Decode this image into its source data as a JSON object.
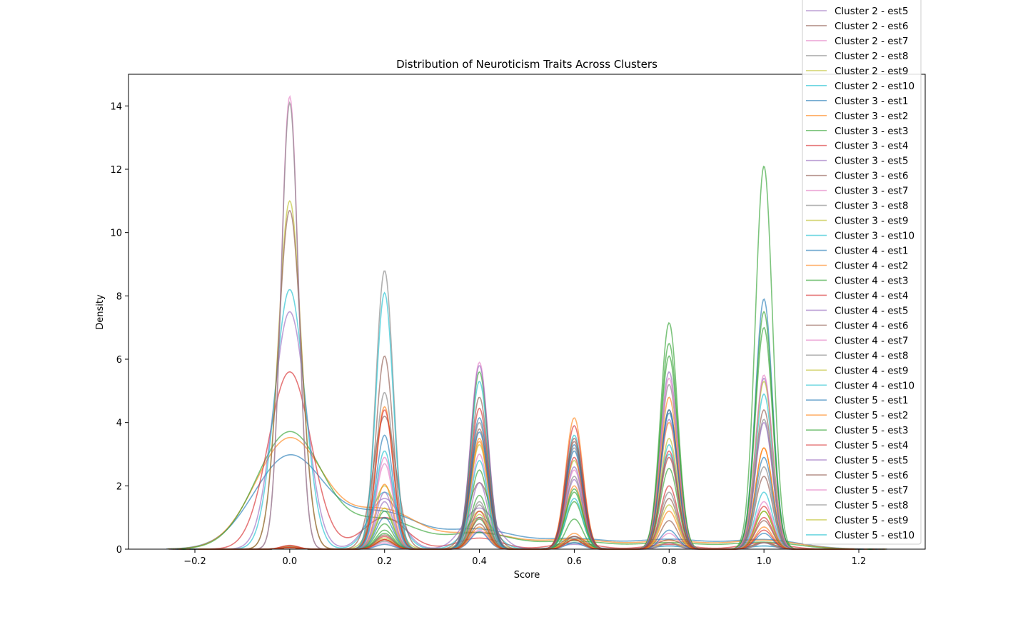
{
  "chart_data": {
    "type": "line",
    "title": "Distribution of Neuroticism Traits Across Clusters",
    "xlabel": "Score",
    "ylabel": "Density",
    "xlim": [
      -0.34,
      1.34
    ],
    "ylim": [
      0,
      15
    ],
    "xticks": [
      "−0.2",
      "0.0",
      "0.2",
      "0.4",
      "0.6",
      "0.8",
      "1.0",
      "1.2"
    ],
    "yticks": [
      "0",
      "2",
      "4",
      "6",
      "8",
      "10",
      "12",
      "14"
    ],
    "legend_position": "upper-right",
    "legend": [
      {
        "label": "Cluster 2 - est5",
        "color": "#9467bd"
      },
      {
        "label": "Cluster 2 - est6",
        "color": "#8c564b"
      },
      {
        "label": "Cluster 2 - est7",
        "color": "#e377c2"
      },
      {
        "label": "Cluster 2 - est8",
        "color": "#7f7f7f"
      },
      {
        "label": "Cluster 2 - est9",
        "color": "#bcbd22"
      },
      {
        "label": "Cluster 2 - est10",
        "color": "#17becf"
      },
      {
        "label": "Cluster 3 - est1",
        "color": "#1f77b4"
      },
      {
        "label": "Cluster 3 - est2",
        "color": "#ff7f0e"
      },
      {
        "label": "Cluster 3 - est3",
        "color": "#2ca02c"
      },
      {
        "label": "Cluster 3 - est4",
        "color": "#d62728"
      },
      {
        "label": "Cluster 3 - est5",
        "color": "#9467bd"
      },
      {
        "label": "Cluster 3 - est6",
        "color": "#8c564b"
      },
      {
        "label": "Cluster 3 - est7",
        "color": "#e377c2"
      },
      {
        "label": "Cluster 3 - est8",
        "color": "#7f7f7f"
      },
      {
        "label": "Cluster 3 - est9",
        "color": "#bcbd22"
      },
      {
        "label": "Cluster 3 - est10",
        "color": "#17becf"
      },
      {
        "label": "Cluster 4 - est1",
        "color": "#1f77b4"
      },
      {
        "label": "Cluster 4 - est2",
        "color": "#ff7f0e"
      },
      {
        "label": "Cluster 4 - est3",
        "color": "#2ca02c"
      },
      {
        "label": "Cluster 4 - est4",
        "color": "#d62728"
      },
      {
        "label": "Cluster 4 - est5",
        "color": "#9467bd"
      },
      {
        "label": "Cluster 4 - est6",
        "color": "#8c564b"
      },
      {
        "label": "Cluster 4 - est7",
        "color": "#e377c2"
      },
      {
        "label": "Cluster 4 - est8",
        "color": "#7f7f7f"
      },
      {
        "label": "Cluster 4 - est9",
        "color": "#bcbd22"
      },
      {
        "label": "Cluster 4 - est10",
        "color": "#17becf"
      },
      {
        "label": "Cluster 5 - est1",
        "color": "#1f77b4"
      },
      {
        "label": "Cluster 5 - est2",
        "color": "#ff7f0e"
      },
      {
        "label": "Cluster 5 - est3",
        "color": "#2ca02c"
      },
      {
        "label": "Cluster 5 - est4",
        "color": "#d62728"
      },
      {
        "label": "Cluster 5 - est5",
        "color": "#9467bd"
      },
      {
        "label": "Cluster 5 - est6",
        "color": "#8c564b"
      },
      {
        "label": "Cluster 5 - est7",
        "color": "#e377c2"
      },
      {
        "label": "Cluster 5 - est8",
        "color": "#7f7f7f"
      },
      {
        "label": "Cluster 5 - est9",
        "color": "#bcbd22"
      },
      {
        "label": "Cluster 5 - est10",
        "color": "#17becf"
      }
    ],
    "series": [
      {
        "color": "#1f77b4",
        "bw": 0.075,
        "peaks": [
          [
            0.0,
            2.95
          ],
          [
            0.2,
            1.1
          ],
          [
            0.4,
            0.6
          ],
          [
            0.6,
            0.32
          ],
          [
            0.8,
            0.3
          ],
          [
            1.0,
            0.3
          ]
        ]
      },
      {
        "color": "#ff7f0e",
        "bw": 0.072,
        "peaks": [
          [
            0.0,
            3.5
          ],
          [
            0.2,
            1.2
          ],
          [
            0.4,
            0.5
          ],
          [
            0.6,
            0.3
          ],
          [
            0.8,
            0.25
          ],
          [
            1.0,
            0.28
          ]
        ]
      },
      {
        "color": "#2ca02c",
        "bw": 0.07,
        "peaks": [
          [
            0.0,
            3.7
          ],
          [
            0.2,
            0.9
          ],
          [
            0.4,
            0.5
          ],
          [
            0.6,
            0.25
          ],
          [
            0.8,
            0.2
          ],
          [
            1.0,
            0.22
          ]
        ]
      },
      {
        "color": "#d62728",
        "bw": 0.045,
        "peaks": [
          [
            0.0,
            5.6
          ],
          [
            0.2,
            1.0
          ],
          [
            0.4,
            0.35
          ],
          [
            0.6,
            0.2
          ],
          [
            0.8,
            0.15
          ],
          [
            1.0,
            0.2
          ]
        ]
      },
      {
        "color": "#9467bd",
        "bw": 0.034,
        "peaks": [
          [
            0.0,
            7.5
          ],
          [
            0.2,
            1.6
          ],
          [
            0.4,
            1.3
          ],
          [
            0.6,
            0.15
          ],
          [
            0.8,
            0.1
          ],
          [
            1.0,
            0.1
          ]
        ]
      },
      {
        "color": "#17becf",
        "bw": 0.031,
        "peaks": [
          [
            0.0,
            8.2
          ],
          [
            0.2,
            1.8
          ],
          [
            0.4,
            1.0
          ],
          [
            0.6,
            0.2
          ],
          [
            0.8,
            0.1
          ],
          [
            1.0,
            0.1
          ]
        ]
      },
      {
        "color": "#bcbd22",
        "bw": 0.024,
        "peaks": [
          [
            0.0,
            11.0
          ],
          [
            0.2,
            2.0
          ],
          [
            0.4,
            1.2
          ],
          [
            0.6,
            0.3
          ],
          [
            0.8,
            0.2
          ],
          [
            1.0,
            0.2
          ]
        ]
      },
      {
        "color": "#8c564b",
        "bw": 0.024,
        "peaks": [
          [
            0.0,
            10.7
          ],
          [
            0.2,
            4.2
          ],
          [
            0.4,
            2.1
          ],
          [
            0.6,
            0.4
          ],
          [
            0.8,
            0.3
          ],
          [
            1.0,
            0.2
          ]
        ]
      },
      {
        "color": "#e377c2",
        "bw": 0.018,
        "peaks": [
          [
            0.0,
            14.3
          ],
          [
            0.2,
            2.9
          ],
          [
            0.4,
            5.9
          ],
          [
            0.6,
            0.3
          ],
          [
            0.8,
            0.2
          ],
          [
            1.0,
            0.2
          ]
        ]
      },
      {
        "color": "#7f7f7f",
        "bw": 0.018,
        "peaks": [
          [
            0.0,
            14.1
          ],
          [
            0.2,
            8.8
          ],
          [
            0.4,
            1.5
          ],
          [
            0.6,
            0.3
          ],
          [
            0.8,
            0.2
          ],
          [
            1.0,
            0.2
          ]
        ]
      },
      {
        "color": "#17becf",
        "bw": 0.018,
        "peaks": [
          [
            0.0,
            0.1
          ],
          [
            0.2,
            8.1
          ],
          [
            0.4,
            5.3
          ],
          [
            0.6,
            3.6
          ],
          [
            0.8,
            3.3
          ],
          [
            1.0,
            4.9
          ]
        ]
      },
      {
        "color": "#8c564b",
        "bw": 0.018,
        "peaks": [
          [
            0.0,
            0.08
          ],
          [
            0.2,
            6.1
          ],
          [
            0.4,
            4.8
          ],
          [
            0.6,
            3.5
          ],
          [
            0.8,
            4.4
          ],
          [
            1.0,
            4.4
          ]
        ]
      },
      {
        "color": "#7f7f7f",
        "bw": 0.018,
        "peaks": [
          [
            0.0,
            0.06
          ],
          [
            0.2,
            4.95
          ],
          [
            0.4,
            4.0
          ],
          [
            0.6,
            3.2
          ],
          [
            0.8,
            5.2
          ],
          [
            1.0,
            4.1
          ]
        ]
      },
      {
        "color": "#ff7f0e",
        "bw": 0.018,
        "peaks": [
          [
            0.0,
            0.1
          ],
          [
            0.2,
            4.5
          ],
          [
            0.4,
            3.5
          ],
          [
            0.6,
            4.15
          ],
          [
            0.8,
            4.0
          ],
          [
            1.0,
            3.2
          ]
        ]
      },
      {
        "color": "#d62728",
        "bw": 0.018,
        "peaks": [
          [
            0.0,
            0.12
          ],
          [
            0.2,
            4.4
          ],
          [
            0.4,
            4.45
          ],
          [
            0.6,
            3.9
          ],
          [
            0.8,
            2.9
          ],
          [
            1.0,
            1.0
          ]
        ]
      },
      {
        "color": "#1f77b4",
        "bw": 0.018,
        "peaks": [
          [
            0.0,
            0.05
          ],
          [
            0.2,
            3.6
          ],
          [
            0.4,
            4.15
          ],
          [
            0.6,
            3.3
          ],
          [
            0.8,
            4.4
          ],
          [
            1.0,
            7.9
          ]
        ]
      },
      {
        "color": "#2ca02c",
        "bw": 0.018,
        "peaks": [
          [
            0.0,
            0.05
          ],
          [
            0.2,
            1.2
          ],
          [
            0.4,
            2.5
          ],
          [
            0.6,
            0.95
          ],
          [
            0.8,
            7.15
          ],
          [
            1.0,
            12.1
          ]
        ]
      },
      {
        "color": "#2ca02c",
        "bw": 0.018,
        "peaks": [
          [
            0.0,
            0.05
          ],
          [
            0.2,
            0.8
          ],
          [
            0.4,
            1.7
          ],
          [
            0.6,
            1.5
          ],
          [
            0.8,
            6.5
          ],
          [
            1.0,
            7.5
          ]
        ]
      },
      {
        "color": "#2ca02c",
        "bw": 0.018,
        "peaks": [
          [
            0.0,
            0.05
          ],
          [
            0.2,
            0.5
          ],
          [
            0.4,
            5.6
          ],
          [
            0.6,
            1.8
          ],
          [
            0.8,
            6.1
          ],
          [
            1.0,
            7.0
          ]
        ]
      },
      {
        "color": "#9467bd",
        "bw": 0.018,
        "peaks": [
          [
            0.0,
            0.05
          ],
          [
            0.2,
            1.5
          ],
          [
            0.4,
            5.8
          ],
          [
            0.6,
            2.2
          ],
          [
            0.8,
            5.6
          ],
          [
            1.0,
            5.4
          ]
        ]
      },
      {
        "color": "#bcbd22",
        "bw": 0.018,
        "peaks": [
          [
            0.0,
            0.05
          ],
          [
            0.2,
            1.3
          ],
          [
            0.4,
            3.3
          ],
          [
            0.6,
            2.8
          ],
          [
            0.8,
            3.5
          ],
          [
            1.0,
            5.3
          ]
        ]
      },
      {
        "color": "#e377c2",
        "bw": 0.018,
        "peaks": [
          [
            0.0,
            0.05
          ],
          [
            0.2,
            2.7
          ],
          [
            0.4,
            3.0
          ],
          [
            0.6,
            2.5
          ],
          [
            0.8,
            5.4
          ],
          [
            1.0,
            5.5
          ]
        ]
      },
      {
        "color": "#ff7f0e",
        "bw": 0.018,
        "peaks": [
          [
            0.0,
            0.05
          ],
          [
            0.2,
            2.05
          ],
          [
            0.4,
            3.4
          ],
          [
            0.6,
            2.0
          ],
          [
            0.8,
            4.8
          ],
          [
            1.0,
            3.2
          ]
        ]
      },
      {
        "color": "#9467bd",
        "bw": 0.018,
        "peaks": [
          [
            0.0,
            0.05
          ],
          [
            0.2,
            1.8
          ],
          [
            0.4,
            2.1
          ],
          [
            0.6,
            2.6
          ],
          [
            0.8,
            4.1
          ],
          [
            1.0,
            4.0
          ]
        ]
      },
      {
        "color": "#8c564b",
        "bw": 0.018,
        "peaks": [
          [
            0.0,
            0.05
          ],
          [
            0.2,
            0.3
          ],
          [
            0.4,
            3.8
          ],
          [
            0.6,
            3.4
          ],
          [
            0.8,
            1.6
          ],
          [
            1.0,
            2.3
          ]
        ]
      },
      {
        "color": "#1f77b4",
        "bw": 0.018,
        "peaks": [
          [
            0.0,
            0.05
          ],
          [
            0.2,
            1.0
          ],
          [
            0.4,
            3.7
          ],
          [
            0.6,
            3.1
          ],
          [
            0.8,
            4.3
          ],
          [
            1.0,
            2.9
          ]
        ]
      },
      {
        "color": "#17becf",
        "bw": 0.018,
        "peaks": [
          [
            0.0,
            0.05
          ],
          [
            0.2,
            3.1
          ],
          [
            0.4,
            2.8
          ],
          [
            0.6,
            1.6
          ],
          [
            0.8,
            3.0
          ],
          [
            1.0,
            1.8
          ]
        ]
      },
      {
        "color": "#2ca02c",
        "bw": 0.018,
        "peaks": [
          [
            0.0,
            0.05
          ],
          [
            0.2,
            0.6
          ],
          [
            0.4,
            0.95
          ],
          [
            0.6,
            1.9
          ],
          [
            0.8,
            2.55
          ],
          [
            1.0,
            1.2
          ]
        ]
      },
      {
        "color": "#d62728",
        "bw": 0.018,
        "peaks": [
          [
            0.0,
            0.05
          ],
          [
            0.2,
            0.4
          ],
          [
            0.4,
            1.2
          ],
          [
            0.6,
            2.9
          ],
          [
            0.8,
            3.1
          ],
          [
            1.0,
            1.35
          ]
        ]
      },
      {
        "color": "#7f7f7f",
        "bw": 0.018,
        "peaks": [
          [
            0.0,
            0.05
          ],
          [
            0.2,
            0.25
          ],
          [
            0.4,
            1.4
          ],
          [
            0.6,
            2.3
          ],
          [
            0.8,
            1.8
          ],
          [
            1.0,
            2.6
          ]
        ]
      },
      {
        "color": "#e377c2",
        "bw": 0.018,
        "peaks": [
          [
            0.0,
            0.05
          ],
          [
            0.2,
            0.2
          ],
          [
            0.4,
            0.6
          ],
          [
            0.6,
            0.3
          ],
          [
            0.8,
            0.5
          ],
          [
            1.0,
            1.5
          ]
        ]
      },
      {
        "color": "#1f77b4",
        "bw": 0.018,
        "peaks": [
          [
            0.0,
            0.05
          ],
          [
            0.2,
            0.15
          ],
          [
            0.4,
            0.55
          ],
          [
            0.6,
            0.2
          ],
          [
            0.8,
            0.6
          ],
          [
            1.0,
            0.5
          ]
        ]
      },
      {
        "color": "#bcbd22",
        "bw": 0.018,
        "peaks": [
          [
            0.0,
            0.05
          ],
          [
            0.2,
            0.35
          ],
          [
            0.4,
            1.1
          ],
          [
            0.6,
            0.3
          ],
          [
            0.8,
            1.4
          ],
          [
            1.0,
            1.2
          ]
        ]
      },
      {
        "color": "#8c564b",
        "bw": 0.018,
        "peaks": [
          [
            0.0,
            0.05
          ],
          [
            0.2,
            0.45
          ],
          [
            0.4,
            0.8
          ],
          [
            0.6,
            0.4
          ],
          [
            0.8,
            0.9
          ],
          [
            1.0,
            0.9
          ]
        ]
      },
      {
        "color": "#ff7f0e",
        "bw": 0.018,
        "peaks": [
          [
            0.0,
            0.05
          ],
          [
            0.2,
            0.3
          ],
          [
            0.4,
            0.7
          ],
          [
            0.6,
            0.5
          ],
          [
            0.8,
            1.2
          ],
          [
            1.0,
            0.7
          ]
        ]
      },
      {
        "color": "#d62728",
        "bw": 0.018,
        "peaks": [
          [
            0.0,
            0.05
          ],
          [
            0.2,
            0.3
          ],
          [
            0.4,
            1.0
          ],
          [
            0.6,
            0.3
          ],
          [
            0.8,
            2.0
          ],
          [
            1.0,
            0.6
          ]
        ]
      }
    ]
  }
}
